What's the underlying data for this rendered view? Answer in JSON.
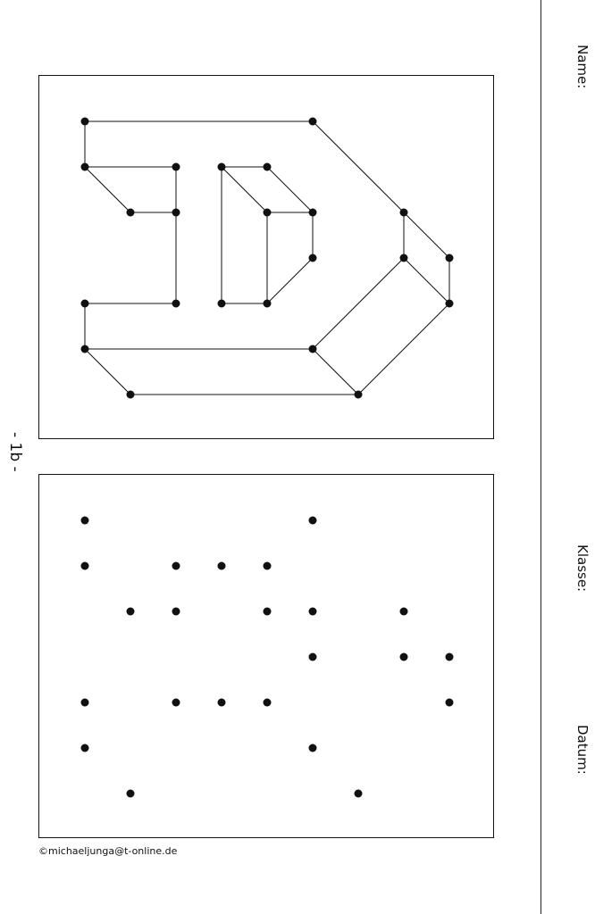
{
  "header": {
    "name_label": "Name:",
    "class_label": "Klasse:",
    "date_label": "Datum:"
  },
  "page_number": "- 1b -",
  "copyright": "©michaeljunga@t-online.de",
  "puzzle": {
    "points": [
      [
        0,
        0
      ],
      [
        5,
        0
      ],
      [
        0,
        1
      ],
      [
        2,
        1
      ],
      [
        3,
        1
      ],
      [
        4,
        1
      ],
      [
        1,
        2
      ],
      [
        2,
        2
      ],
      [
        4,
        2
      ],
      [
        5,
        2
      ],
      [
        7,
        2
      ],
      [
        5,
        3
      ],
      [
        7,
        3
      ],
      [
        8,
        3
      ],
      [
        0,
        4
      ],
      [
        2,
        4
      ],
      [
        3,
        4
      ],
      [
        4,
        4
      ],
      [
        8,
        4
      ],
      [
        0,
        5
      ],
      [
        5,
        5
      ],
      [
        1,
        6
      ],
      [
        6,
        6
      ]
    ],
    "lines": [
      [
        [
          0,
          0
        ],
        [
          5,
          0
        ]
      ],
      [
        [
          0,
          0
        ],
        [
          0,
          1
        ]
      ],
      [
        [
          5,
          0
        ],
        [
          7,
          2
        ]
      ],
      [
        [
          7,
          2
        ],
        [
          8,
          3
        ]
      ],
      [
        [
          8,
          3
        ],
        [
          8,
          4
        ]
      ],
      [
        [
          8,
          4
        ],
        [
          6,
          6
        ]
      ],
      [
        [
          6,
          6
        ],
        [
          1,
          6
        ]
      ],
      [
        [
          1,
          6
        ],
        [
          0,
          5
        ]
      ],
      [
        [
          0,
          5
        ],
        [
          0,
          4
        ]
      ],
      [
        [
          0,
          4
        ],
        [
          2,
          4
        ]
      ],
      [
        [
          2,
          4
        ],
        [
          2,
          1
        ]
      ],
      [
        [
          2,
          1
        ],
        [
          0,
          1
        ]
      ],
      [
        [
          0,
          1
        ],
        [
          1,
          2
        ]
      ],
      [
        [
          1,
          2
        ],
        [
          2,
          2
        ]
      ],
      [
        [
          0,
          5
        ],
        [
          5,
          5
        ]
      ],
      [
        [
          5,
          5
        ],
        [
          7,
          3
        ]
      ],
      [
        [
          7,
          3
        ],
        [
          8,
          4
        ]
      ],
      [
        [
          7,
          3
        ],
        [
          7,
          2
        ]
      ],
      [
        [
          5,
          5
        ],
        [
          6,
          6
        ]
      ],
      [
        [
          3,
          1
        ],
        [
          4,
          1
        ]
      ],
      [
        [
          4,
          1
        ],
        [
          5,
          2
        ]
      ],
      [
        [
          3,
          1
        ],
        [
          3,
          4
        ]
      ],
      [
        [
          3,
          4
        ],
        [
          4,
          4
        ]
      ],
      [
        [
          4,
          4
        ],
        [
          5,
          3
        ]
      ],
      [
        [
          5,
          3
        ],
        [
          5,
          2
        ]
      ],
      [
        [
          4,
          2
        ],
        [
          5,
          2
        ]
      ],
      [
        [
          4,
          2
        ],
        [
          4,
          4
        ]
      ],
      [
        [
          3,
          1
        ],
        [
          4,
          2
        ]
      ]
    ]
  }
}
